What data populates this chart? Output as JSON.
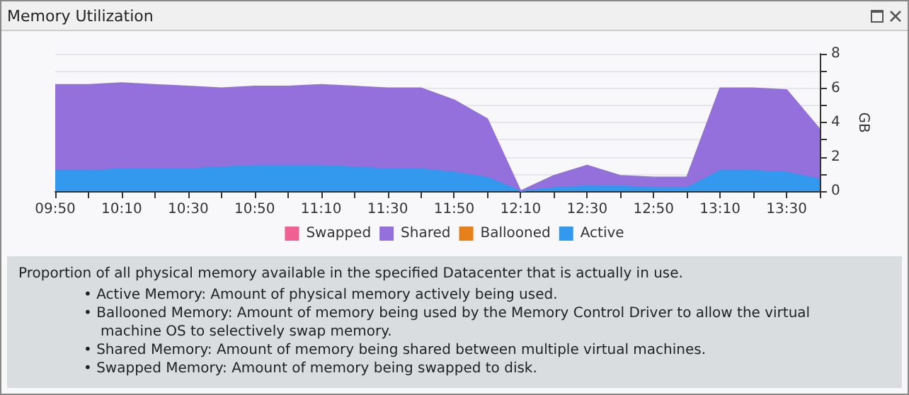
{
  "chart_data": {
    "type": "area",
    "title": "Memory Utilization",
    "ylabel": "GB",
    "stacked": true,
    "categories": [
      "09:50",
      null,
      "10:10",
      null,
      "10:30",
      null,
      "10:50",
      null,
      "11:10",
      null,
      "11:30",
      null,
      "11:50",
      null,
      "12:10",
      null,
      "12:30",
      null,
      "12:50",
      null,
      "13:10",
      null,
      "13:30",
      null
    ],
    "series": [
      {
        "name": "Active",
        "color": "#3399ee",
        "values": [
          1.2,
          1.2,
          1.3,
          1.3,
          1.3,
          1.4,
          1.5,
          1.5,
          1.5,
          1.4,
          1.3,
          1.3,
          1.1,
          0.8,
          0,
          0.2,
          0.3,
          0.3,
          0.2,
          0.2,
          1.2,
          1.2,
          1.1,
          0.7
        ]
      },
      {
        "name": "Ballooned",
        "color": "#e8801a",
        "values": [
          null,
          null,
          null,
          null,
          null,
          null,
          null,
          null,
          null,
          null,
          null,
          null,
          null,
          null,
          null,
          null,
          null,
          null,
          null,
          null,
          null,
          null,
          null,
          null
        ]
      },
      {
        "name": "Shared",
        "color": "#9370db",
        "values": [
          5.0,
          5.0,
          5.0,
          4.9,
          4.8,
          4.6,
          4.6,
          4.6,
          4.7,
          4.7,
          4.7,
          4.7,
          4.2,
          3.4,
          0,
          0.7,
          1.2,
          0.6,
          0.6,
          0.6,
          4.8,
          4.8,
          4.8,
          2.9
        ]
      },
      {
        "name": "Swapped",
        "color": "#f06090",
        "values": [
          null,
          null,
          null,
          null,
          null,
          null,
          null,
          null,
          null,
          null,
          null,
          null,
          null,
          null,
          null,
          null,
          null,
          null,
          null,
          null,
          null,
          null,
          null,
          null
        ]
      }
    ],
    "ylim": [
      0,
      8
    ],
    "yticks": [
      0,
      {
        "value": 1,
        "label": null
      },
      2,
      {
        "value": 3,
        "label": null
      },
      4,
      {
        "value": 5,
        "label": null
      },
      6,
      {
        "value": 7,
        "label": null
      },
      8
    ],
    "grid": "y",
    "legend": "bottom",
    "annotations": [
      "Proportion of all physical memory available in the specified Datacenter that is actually in use.",
      "• Active Memory: Amount of physical memory actively being used.",
      "• Ballooned Memory: Amount of memory being used by the Memory Control Driver to allow the virtual machine OS to selectively swap memory.",
      "• Shared Memory: Amount of memory being shared between multiple virtual machines.",
      "• Swapped Memory: Amount of memory being swapped to disk."
    ]
  }
}
